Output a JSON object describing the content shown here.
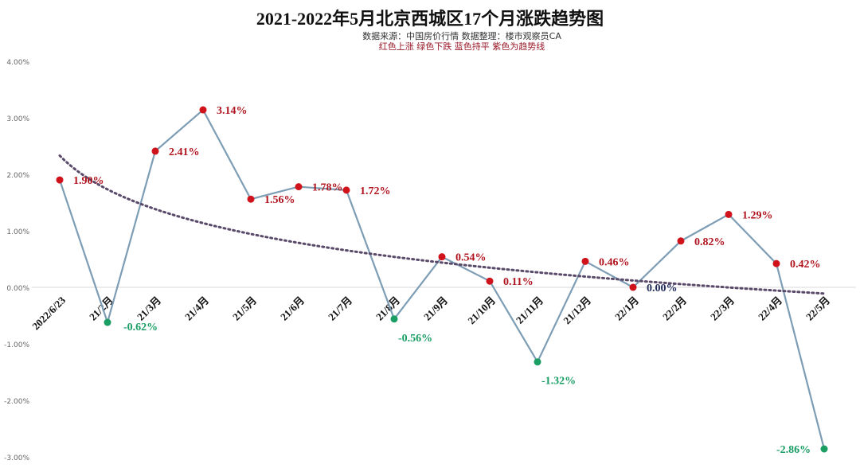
{
  "chart_data": {
    "type": "line",
    "title": "2021-2022年5月北京西城区17个月涨跌趋势图",
    "subtitle": "数据来源：中国房价行情    数据整理：楼市观察员CA",
    "legend_note": "红色上涨   绿色下跌  蓝色持平  紫色为趋势线",
    "categories": [
      "2022/6/23",
      "21/2月",
      "21/3月",
      "21/4月",
      "21/5月",
      "21/6月",
      "21/7月",
      "21/8月",
      "21/9月",
      "21/10月",
      "21/11月",
      "21/12月",
      "22/1月",
      "22/2月",
      "22/3月",
      "22/4月",
      "22/5月"
    ],
    "values": [
      1.9,
      -0.62,
      2.41,
      3.14,
      1.56,
      1.78,
      1.72,
      -0.56,
      0.54,
      0.11,
      -1.32,
      0.46,
      0.0,
      0.82,
      1.29,
      0.42,
      -2.86
    ],
    "data_labels": [
      "1.90%",
      "-0.62%",
      "2.41%",
      "3.14%",
      "1.56%",
      "1.78%",
      "1.72%",
      "-0.56%",
      "0.54%",
      "0.11%",
      "-1.32%",
      "0.46%",
      "0.00%",
      "0.82%",
      "1.29%",
      "0.42%",
      "-2.86%"
    ],
    "yticks": [
      "4.00%",
      "3.00%",
      "2.00%",
      "1.00%",
      "0.00%",
      "-1.00%",
      "-2.00%",
      "-3.00%"
    ],
    "ylim": [
      -3,
      4
    ],
    "trendline": {
      "type": "logarithmic",
      "start": 2.33,
      "end": -0.11
    },
    "grid": false,
    "colors": {
      "up": "#d0121b",
      "down": "#1a9e64",
      "flat": "#1f2a5a",
      "line": "#7d9db5",
      "trend": "#5a4a6a",
      "up_label": "#b0141e",
      "down_label": "#1a9e64"
    }
  }
}
